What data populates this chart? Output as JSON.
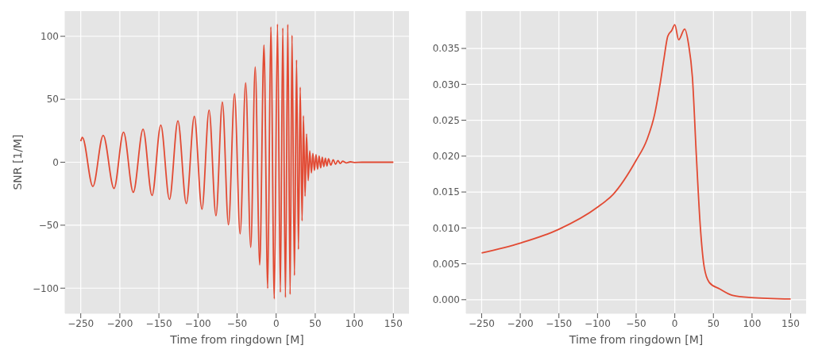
{
  "chart_data": [
    {
      "type": "line",
      "xlabel": "Time from ringdown [M]",
      "ylabel": "SNR [1/M]",
      "xlim": [
        -270,
        170
      ],
      "ylim": [
        -120,
        120
      ],
      "xticks": [
        -250,
        -200,
        -150,
        -100,
        -50,
        0,
        50,
        100,
        150
      ],
      "yticks": [
        -100,
        -50,
        0,
        50,
        100
      ],
      "grid": true,
      "marker": "none",
      "line_style": "solid",
      "series": [
        {
          "color": "#e24a33",
          "x": [
            -250,
            -248,
            -234.5,
            -221.3,
            -207.4,
            -195.3,
            -182.8,
            -170.3,
            -158.8,
            -147.6,
            -136.5,
            -125.7,
            -114.9,
            -104.7,
            -94.9,
            -85.8,
            -77,
            -68.8,
            -61,
            -53.2,
            -46.1,
            -39,
            -32.5,
            -26.8,
            -21,
            -15.6,
            -10.8,
            -6.8,
            -2.4,
            1.7,
            5.4,
            8.5,
            11.9,
            14.9,
            17.9,
            20.3,
            23.4,
            26.1,
            28.5,
            30.8,
            33.2,
            34.9,
            37,
            38.9,
            41,
            43,
            45.1,
            47,
            49,
            51,
            53,
            55,
            57,
            59,
            61,
            63,
            65,
            67,
            70,
            73,
            76,
            79,
            82,
            85,
            90,
            95,
            100,
            110,
            150
          ],
          "values": [
            16.7,
            19.8,
            -19.2,
            21.4,
            -20.8,
            23.9,
            -23.9,
            26.2,
            -26.4,
            29.5,
            -29.5,
            32.8,
            -32.8,
            36.5,
            -37.3,
            41.4,
            -42.5,
            47.8,
            -49.7,
            54.4,
            -56.9,
            63.1,
            -67.6,
            75.7,
            -81.6,
            93.2,
            -100.2,
            107.4,
            -108.5,
            109.7,
            -103.3,
            106.6,
            -107.4,
            109.5,
            -105,
            100.8,
            -89.9,
            81.2,
            -69.3,
            59.6,
            -46.6,
            36.9,
            -27,
            22.5,
            -14.6,
            9.1,
            -8.5,
            7,
            -6.5,
            6,
            -5.5,
            5,
            -4.5,
            4,
            -3.5,
            3.2,
            -3,
            2.7,
            -2.3,
            2,
            -1.6,
            1.3,
            -1,
            0.8,
            -0.5,
            0.3,
            -0.2,
            0,
            0
          ]
        }
      ]
    },
    {
      "type": "line",
      "xlabel": "Time from ringdown [M]",
      "xlim": [
        -270,
        170
      ],
      "ylim": [
        -0.0019,
        0.0402
      ],
      "xticks": [
        -250,
        -200,
        -150,
        -100,
        -50,
        0,
        50,
        100,
        150
      ],
      "yticks": [
        {
          "value": 0,
          "label": "0.000"
        },
        {
          "value": 0.005,
          "label": "0.005"
        },
        {
          "value": 0.01,
          "label": "0.010"
        },
        {
          "value": 0.015,
          "label": "0.015"
        },
        {
          "value": 0.02,
          "label": "0.020"
        },
        {
          "value": 0.025,
          "label": "0.025"
        },
        {
          "value": 0.03,
          "label": "0.030"
        },
        {
          "value": 0.035,
          "label": "0.035"
        }
      ],
      "grid": true,
      "marker": "none",
      "line_style": "solid",
      "series": [
        {
          "color": "#e24a33",
          "x": [
            -250,
            -199.6,
            -150.2,
            -99.8,
            -79.6,
            -50.1,
            -36,
            -25.9,
            -19.2,
            -14.1,
            -9.1,
            -4,
            0,
            5,
            12.8,
            17.8,
            22.8,
            27.9,
            32.9,
            38,
            44.7,
            58.1,
            74.9,
            98.5,
            150
          ],
          "values": [
            0.0065,
            0.0079,
            0.0098,
            0.0129,
            0.0147,
            0.0194,
            0.0223,
            0.0259,
            0.0299,
            0.0335,
            0.0367,
            0.0375,
            0.0383,
            0.0362,
            0.0377,
            0.0356,
            0.031,
            0.0201,
            0.0104,
            0.0046,
            0.0024,
            0.0015,
            0.0006,
            0.0003,
            0.0001
          ]
        }
      ]
    }
  ]
}
